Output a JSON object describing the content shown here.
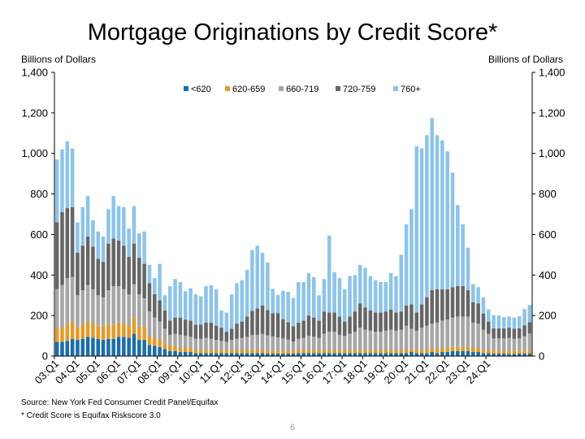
{
  "chart_data": {
    "type": "bar",
    "stacked": true,
    "title": "Mortgage Originations by Credit Score*",
    "ylabel_left": "Billions of Dollars",
    "ylabel_right": "Billions of Dollars",
    "ylim": [
      0,
      1400
    ],
    "yticks": [
      0,
      200,
      400,
      600,
      800,
      1000,
      1200,
      1400
    ],
    "ytick_labels": [
      "0",
      "200",
      "400",
      "600",
      "800",
      "1,000",
      "1,200",
      "1,400"
    ],
    "grid": false,
    "legend_position": "top",
    "xtick_labels": [
      "03:Q1",
      "04:Q1",
      "05:Q1",
      "06:Q1",
      "07:Q1",
      "08:Q1",
      "09:Q1",
      "10:Q1",
      "11:Q1",
      "12:Q1",
      "13:Q1",
      "14:Q1",
      "15:Q1",
      "16:Q1",
      "17:Q1",
      "18:Q1",
      "19:Q1",
      "20:Q1",
      "21:Q1",
      "22:Q1",
      "23:Q1",
      "24:Q1"
    ],
    "series": [
      {
        "name": "<620",
        "color": "#1b6ea8",
        "values": [
          70,
          70,
          75,
          85,
          80,
          85,
          95,
          90,
          85,
          80,
          85,
          85,
          95,
          95,
          90,
          110,
          80,
          80,
          55,
          50,
          45,
          35,
          25,
          25,
          20,
          20,
          20,
          15,
          15,
          15,
          15,
          15,
          15,
          15,
          15,
          15,
          15,
          15,
          15,
          15,
          15,
          12,
          12,
          12,
          12,
          12,
          12,
          15,
          15,
          15,
          15,
          15,
          15,
          15,
          15,
          15,
          15,
          15,
          15,
          15,
          15,
          15,
          15,
          15,
          15,
          15,
          15,
          15,
          15,
          20,
          15,
          15,
          15,
          20,
          15,
          20,
          20,
          25,
          25,
          25,
          25,
          20,
          20,
          15,
          15,
          12,
          12,
          12,
          10,
          10,
          12,
          12,
          12
        ]
      },
      {
        "name": "620-659",
        "color": "#e39a2c",
        "values": [
          70,
          70,
          80,
          85,
          60,
          70,
          75,
          70,
          65,
          65,
          70,
          70,
          70,
          65,
          60,
          80,
          65,
          65,
          45,
          40,
          35,
          30,
          25,
          25,
          20,
          20,
          20,
          15,
          15,
          15,
          15,
          15,
          15,
          15,
          15,
          15,
          15,
          15,
          18,
          15,
          15,
          15,
          15,
          15,
          15,
          15,
          15,
          15,
          15,
          15,
          15,
          15,
          15,
          15,
          15,
          15,
          15,
          15,
          15,
          15,
          15,
          15,
          15,
          15,
          15,
          15,
          15,
          15,
          15,
          15,
          15,
          15,
          15,
          20,
          20,
          20,
          20,
          20,
          20,
          20,
          20,
          20,
          20,
          15,
          15,
          15,
          15,
          15,
          15,
          15,
          15,
          15,
          15
        ]
      },
      {
        "name": "660-719",
        "color": "#a6a6a6",
        "values": [
          190,
          210,
          230,
          220,
          160,
          170,
          180,
          170,
          150,
          145,
          170,
          190,
          180,
          170,
          155,
          165,
          160,
          140,
          120,
          100,
          90,
          70,
          55,
          60,
          65,
          60,
          55,
          55,
          55,
          60,
          55,
          50,
          45,
          40,
          50,
          55,
          60,
          65,
          70,
          75,
          80,
          75,
          70,
          65,
          60,
          55,
          45,
          55,
          60,
          70,
          65,
          60,
          80,
          90,
          90,
          75,
          70,
          80,
          90,
          110,
          100,
          95,
          90,
          90,
          95,
          100,
          95,
          100,
          120,
          100,
          95,
          110,
          120,
          120,
          130,
          135,
          140,
          145,
          150,
          150,
          150,
          125,
          120,
          100,
          80,
          60,
          60,
          60,
          65,
          60,
          60,
          70,
          85
        ]
      },
      {
        "name": "720-759",
        "color": "#666666",
        "values": [
          330,
          360,
          345,
          345,
          210,
          220,
          240,
          210,
          180,
          175,
          230,
          235,
          225,
          215,
          185,
          200,
          180,
          170,
          140,
          115,
          105,
          90,
          70,
          80,
          85,
          80,
          80,
          70,
          70,
          75,
          80,
          70,
          65,
          50,
          55,
          75,
          80,
          100,
          120,
          130,
          140,
          125,
          115,
          120,
          95,
          85,
          75,
          80,
          85,
          100,
          95,
          85,
          110,
          95,
          95,
          90,
          70,
          85,
          100,
          120,
          110,
          100,
          95,
          95,
          95,
          100,
          90,
          90,
          100,
          120,
          90,
          115,
          140,
          165,
          165,
          155,
          150,
          150,
          150,
          150,
          130,
          100,
          100,
          80,
          60,
          50,
          50,
          50,
          50,
          50,
          50,
          55,
          55
        ]
      },
      {
        "name": "760+",
        "color": "#8dc4e8",
        "values": [
          310,
          310,
          330,
          290,
          150,
          190,
          200,
          130,
          135,
          125,
          170,
          210,
          170,
          190,
          140,
          185,
          120,
          160,
          90,
          80,
          180,
          75,
          170,
          190,
          175,
          140,
          160,
          150,
          140,
          180,
          185,
          180,
          85,
          95,
          170,
          200,
          205,
          230,
          300,
          310,
          260,
          235,
          120,
          90,
          140,
          150,
          140,
          200,
          190,
          210,
          200,
          125,
          160,
          380,
          200,
          190,
          160,
          200,
          180,
          190,
          195,
          170,
          160,
          150,
          145,
          180,
          180,
          280,
          400,
          470,
          820,
          770,
          800,
          850,
          760,
          735,
          680,
          565,
          400,
          305,
          210,
          90,
          80,
          80,
          60,
          65,
          65,
          55,
          55,
          55,
          60,
          80,
          85
        ]
      }
    ]
  },
  "labels": {
    "source": "Source: New York Fed Consumer Credit Panel/Equifax",
    "note": "* Credit Score is Equifax Riskscore 3.0",
    "page_number": "6"
  }
}
